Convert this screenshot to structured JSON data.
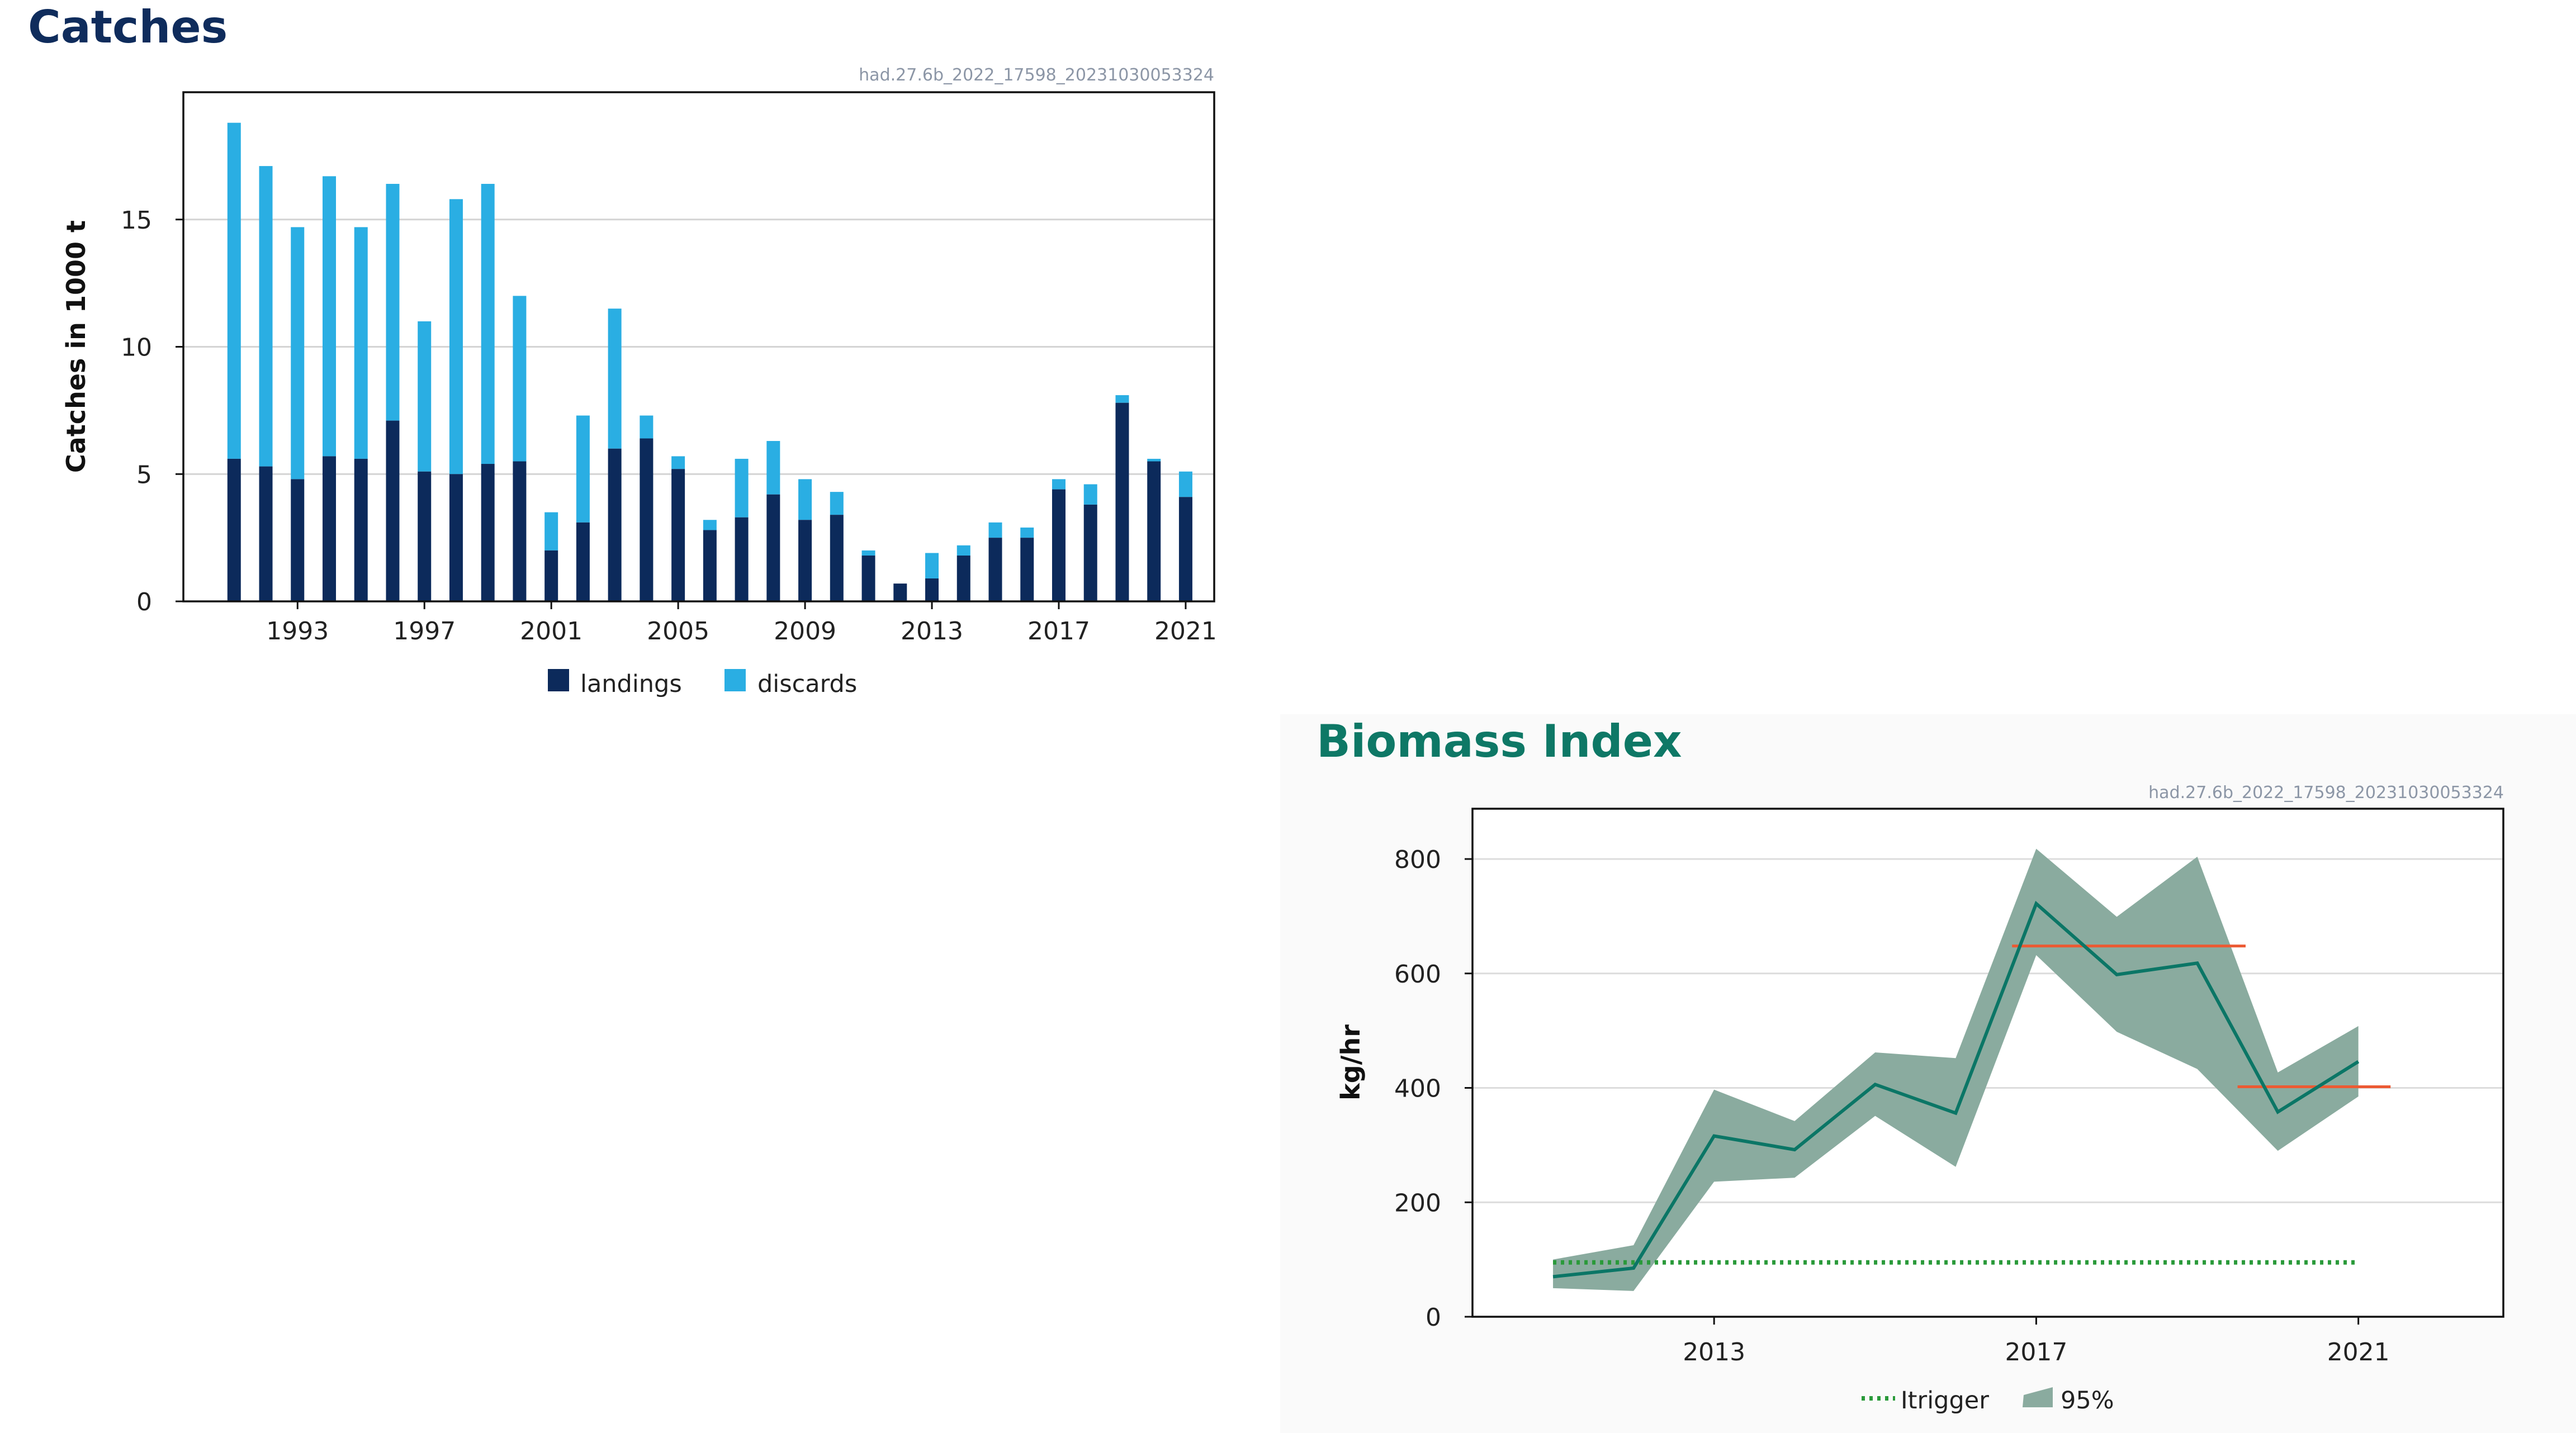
{
  "colors": {
    "landings": "#0c2a5b",
    "discards": "#2aaee3",
    "index_line": "#0b7666",
    "band": "#8aab9f",
    "itrigger": "#2a9a3a",
    "mean": "#ec5a33"
  },
  "chart_data": [
    {
      "type": "bar",
      "title": "Catches",
      "ref_id": "had.27.6b_2022_17598_20231030053324",
      "ylabel": "Catches in 1000 t",
      "ylim": [
        0,
        20
      ],
      "yticks": [
        0,
        5,
        10,
        15
      ],
      "xticks": [
        1993,
        1997,
        2001,
        2005,
        2009,
        2013,
        2017,
        2021
      ],
      "categories": [
        1991,
        1992,
        1993,
        1994,
        1995,
        1996,
        1997,
        1998,
        1999,
        2000,
        2001,
        2002,
        2003,
        2004,
        2005,
        2006,
        2007,
        2008,
        2009,
        2010,
        2011,
        2012,
        2013,
        2014,
        2015,
        2016,
        2017,
        2018,
        2019,
        2020,
        2021
      ],
      "legend_position": "bottom",
      "series": [
        {
          "name": "landings",
          "values": [
            5.6,
            5.3,
            4.8,
            5.7,
            5.6,
            7.1,
            5.1,
            5.0,
            5.4,
            5.5,
            2.0,
            3.1,
            6.0,
            6.4,
            5.2,
            2.8,
            3.3,
            4.2,
            3.2,
            3.4,
            1.8,
            0.7,
            0.9,
            1.8,
            2.5,
            2.5,
            4.4,
            3.8,
            7.8,
            5.5,
            4.1
          ]
        },
        {
          "name": "discards",
          "values": [
            13.2,
            11.8,
            9.9,
            11.0,
            9.1,
            9.3,
            5.9,
            10.8,
            11.0,
            6.5,
            1.5,
            4.2,
            5.5,
            0.9,
            0.5,
            0.4,
            2.3,
            2.1,
            1.6,
            0.9,
            0.2,
            0.0,
            1.0,
            0.4,
            0.6,
            0.4,
            0.4,
            0.8,
            0.3,
            0.1,
            1.0
          ]
        }
      ]
    },
    {
      "type": "line",
      "title": "Biomass Index",
      "ref_id": "had.27.6b_2022_17598_20231030053324",
      "ylabel": "kg/hr",
      "ylim": [
        0,
        800
      ],
      "xlim": [
        2010,
        2022.8
      ],
      "yticks": [
        0,
        200,
        400,
        600,
        800
      ],
      "xticks": [
        2013,
        2017,
        2021
      ],
      "legend_position": "bottom",
      "x": [
        2011,
        2012,
        2013,
        2014,
        2015,
        2016,
        2017,
        2018,
        2019,
        2020,
        2021
      ],
      "index": [
        70,
        85,
        316,
        292,
        406,
        356,
        722,
        598,
        618,
        358,
        446
      ],
      "ci_low": [
        50,
        45,
        236,
        243,
        351,
        262,
        632,
        498,
        433,
        290,
        385
      ],
      "ci_high": [
        100,
        125,
        397,
        342,
        462,
        452,
        818,
        699,
        804,
        427,
        508
      ],
      "itrigger": {
        "name": "Itrigger",
        "value": 95,
        "x_range": [
          2011,
          2021
        ]
      },
      "means": [
        {
          "x_range": [
            2016.7,
            2019.6
          ],
          "value": 648
        },
        {
          "x_range": [
            2019.5,
            2021.4
          ],
          "value": 402
        }
      ],
      "band_label": "95%"
    }
  ]
}
